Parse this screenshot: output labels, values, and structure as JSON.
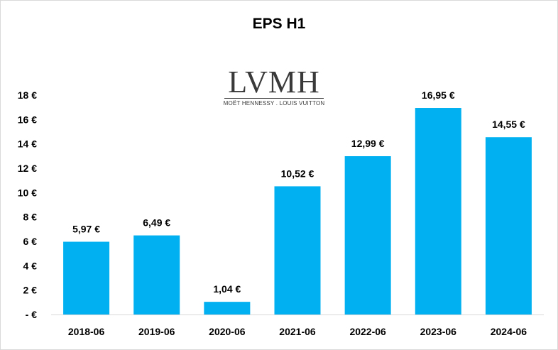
{
  "chart_data": {
    "type": "bar",
    "title": "EPS H1",
    "categories": [
      "2018-06",
      "2019-06",
      "2020-06",
      "2021-06",
      "2022-06",
      "2023-06",
      "2024-06"
    ],
    "values": [
      5.97,
      6.49,
      1.04,
      10.52,
      12.99,
      16.95,
      14.55
    ],
    "value_labels": [
      "5,97 €",
      "6,49 €",
      "1,04 €",
      "10,52 €",
      "12,99 €",
      "16,95 €",
      "14,55 €"
    ],
    "ylim": [
      0,
      18
    ],
    "yticks": [
      0,
      2,
      4,
      6,
      8,
      10,
      12,
      14,
      16,
      18
    ],
    "ytick_labels": [
      "- €",
      "2 €",
      "4 €",
      "6 €",
      "8 €",
      "10 €",
      "12 €",
      "14 €",
      "16 €",
      "18 €"
    ],
    "xlabel": "",
    "ylabel": "",
    "grid": false,
    "bar_color": "#00b0f0"
  },
  "logo": {
    "main": "LVMH",
    "sub": "MOËT HENNESSY . LOUIS VUITTON"
  }
}
